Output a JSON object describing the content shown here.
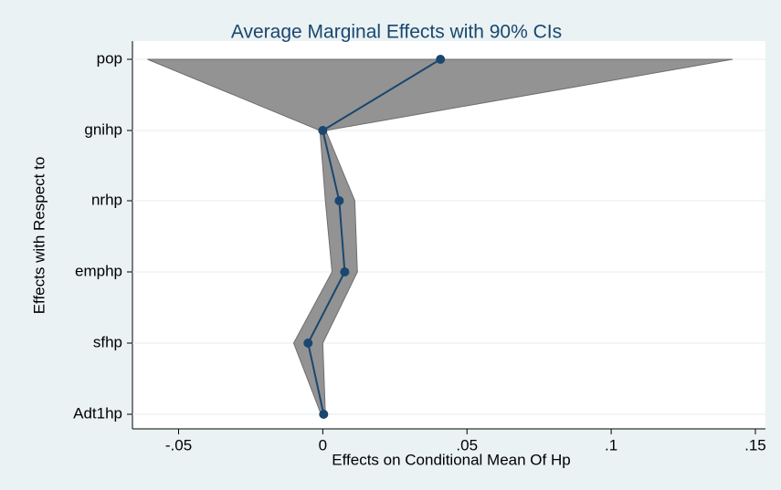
{
  "chart_data": {
    "type": "line",
    "title": "Average Marginal Effects with 90% CIs",
    "x_label": "Effects on Conditional Mean Of Hp",
    "y_label": "Effects with Respect to",
    "categories": [
      "pop",
      "gnihp",
      "nrhp",
      "emphp",
      "sfhp",
      "Adt1hp"
    ],
    "series": [
      {
        "color": "#1a476f",
        "values": [
          0.0408,
          0,
          0.0057,
          0.0076,
          -0.0051,
          0.0003
        ],
        "lower": [
          -0.0608,
          -0.001,
          0.0009,
          0.0032,
          -0.0101,
          -0.0006
        ],
        "upper": [
          0.1421,
          0.001,
          0.0111,
          0.012,
          0,
          0.0009
        ],
        "ci_color": "#939393"
      }
    ],
    "xlim": [
      -0.066,
      0.1535
    ],
    "xticks": [
      {
        "value": -0.05,
        "label": "-.05"
      },
      0,
      {
        "value": 0.05,
        "label": ".05"
      },
      {
        "value": 0.1,
        "label": ".1"
      },
      {
        "value": 0.15,
        "label": ".15"
      }
    ],
    "grid": true
  }
}
